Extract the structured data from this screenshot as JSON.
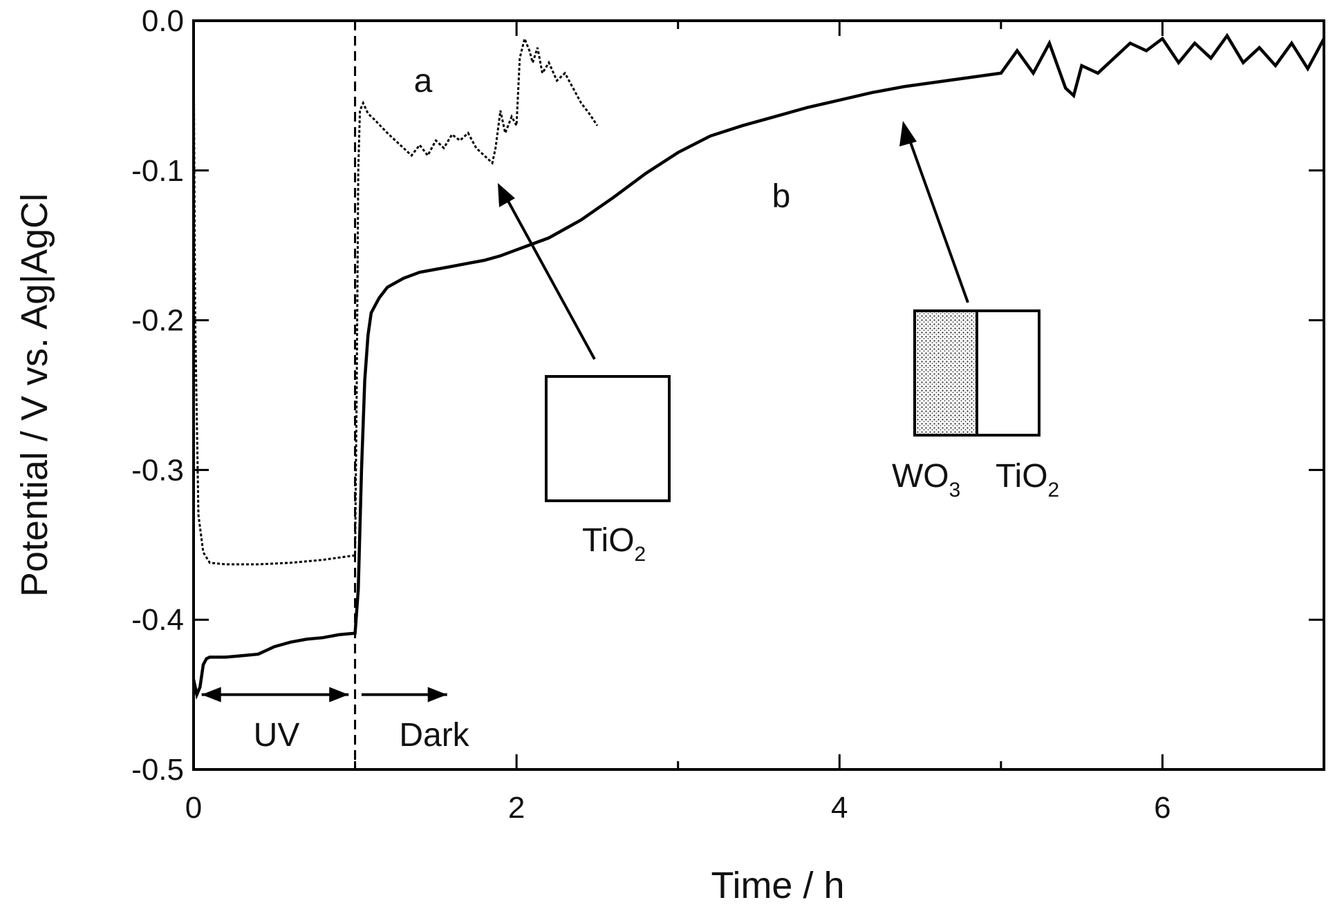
{
  "chart_data": {
    "type": "line",
    "title": "",
    "xlabel": "Time / h",
    "ylabel": "Potential / V vs. Ag|AgCl",
    "xlim": [
      0,
      7
    ],
    "ylim": [
      -0.5,
      0.0
    ],
    "xticks": [
      0,
      2,
      4,
      6
    ],
    "yticks": [
      0.0,
      -0.1,
      -0.2,
      -0.3,
      -0.4,
      -0.5
    ],
    "xtick_labels": [
      "0",
      "2",
      "4",
      "6"
    ],
    "ytick_labels": [
      "0.0",
      "-0.1",
      "-0.2",
      "-0.3",
      "-0.4",
      "-0.5"
    ],
    "grid": false,
    "legend": "none",
    "series": [
      {
        "name": "a",
        "style": "dotted",
        "x": [
          0.0,
          0.01,
          0.03,
          0.06,
          0.1,
          0.2,
          0.4,
          0.6,
          0.8,
          1.0,
          1.01,
          1.02,
          1.03,
          1.05,
          1.08,
          1.12,
          1.2,
          1.3,
          1.35,
          1.4,
          1.45,
          1.5,
          1.55,
          1.6,
          1.65,
          1.7,
          1.75,
          1.8,
          1.85,
          1.87,
          1.9,
          1.93,
          1.97,
          2.0,
          2.02,
          2.05,
          2.08,
          2.1,
          2.13,
          2.16,
          2.2,
          2.25,
          2.3,
          2.35,
          2.4,
          2.45,
          2.5
        ],
        "y": [
          -0.01,
          -0.2,
          -0.33,
          -0.355,
          -0.362,
          -0.363,
          -0.363,
          -0.362,
          -0.36,
          -0.357,
          -0.25,
          -0.1,
          -0.06,
          -0.055,
          -0.062,
          -0.066,
          -0.075,
          -0.085,
          -0.09,
          -0.083,
          -0.09,
          -0.08,
          -0.085,
          -0.076,
          -0.08,
          -0.075,
          -0.085,
          -0.09,
          -0.095,
          -0.085,
          -0.06,
          -0.075,
          -0.064,
          -0.07,
          -0.025,
          -0.012,
          -0.02,
          -0.028,
          -0.018,
          -0.035,
          -0.028,
          -0.04,
          -0.035,
          -0.045,
          -0.055,
          -0.062,
          -0.07
        ]
      },
      {
        "name": "b",
        "style": "solid",
        "x": [
          0.0,
          0.02,
          0.04,
          0.06,
          0.08,
          0.1,
          0.2,
          0.3,
          0.4,
          0.5,
          0.6,
          0.7,
          0.8,
          0.9,
          1.0,
          1.02,
          1.04,
          1.06,
          1.08,
          1.1,
          1.15,
          1.2,
          1.3,
          1.4,
          1.5,
          1.6,
          1.7,
          1.8,
          1.9,
          2.0,
          2.2,
          2.4,
          2.6,
          2.8,
          3.0,
          3.2,
          3.4,
          3.6,
          3.8,
          4.0,
          4.2,
          4.4,
          4.6,
          4.8,
          5.0,
          5.1,
          5.2,
          5.3,
          5.4,
          5.45,
          5.5,
          5.6,
          5.7,
          5.8,
          5.9,
          6.0,
          6.1,
          6.2,
          6.3,
          6.4,
          6.5,
          6.6,
          6.7,
          6.8,
          6.9,
          7.0
        ],
        "y": [
          -0.44,
          -0.45,
          -0.445,
          -0.43,
          -0.426,
          -0.425,
          -0.425,
          -0.424,
          -0.423,
          -0.418,
          -0.415,
          -0.413,
          -0.412,
          -0.41,
          -0.409,
          -0.38,
          -0.3,
          -0.24,
          -0.21,
          -0.195,
          -0.185,
          -0.178,
          -0.172,
          -0.168,
          -0.166,
          -0.164,
          -0.162,
          -0.16,
          -0.157,
          -0.153,
          -0.145,
          -0.133,
          -0.118,
          -0.102,
          -0.088,
          -0.077,
          -0.07,
          -0.064,
          -0.058,
          -0.053,
          -0.048,
          -0.044,
          -0.041,
          -0.038,
          -0.035,
          -0.02,
          -0.035,
          -0.015,
          -0.045,
          -0.05,
          -0.03,
          -0.035,
          -0.025,
          -0.015,
          -0.02,
          -0.012,
          -0.028,
          -0.015,
          -0.025,
          -0.01,
          -0.028,
          -0.018,
          -0.03,
          -0.015,
          -0.032,
          -0.012
        ]
      }
    ],
    "annotations": {
      "label_a": "a",
      "label_b": "b",
      "uv": "UV",
      "dark": "Dark",
      "tio2_inset_label_main": "TiO",
      "tio2_inset_label_sub": "2",
      "wo3_label_main": "WO",
      "wo3_label_sub": "3",
      "tio2b_label_main": "TiO",
      "tio2b_label_sub": "2"
    }
  }
}
